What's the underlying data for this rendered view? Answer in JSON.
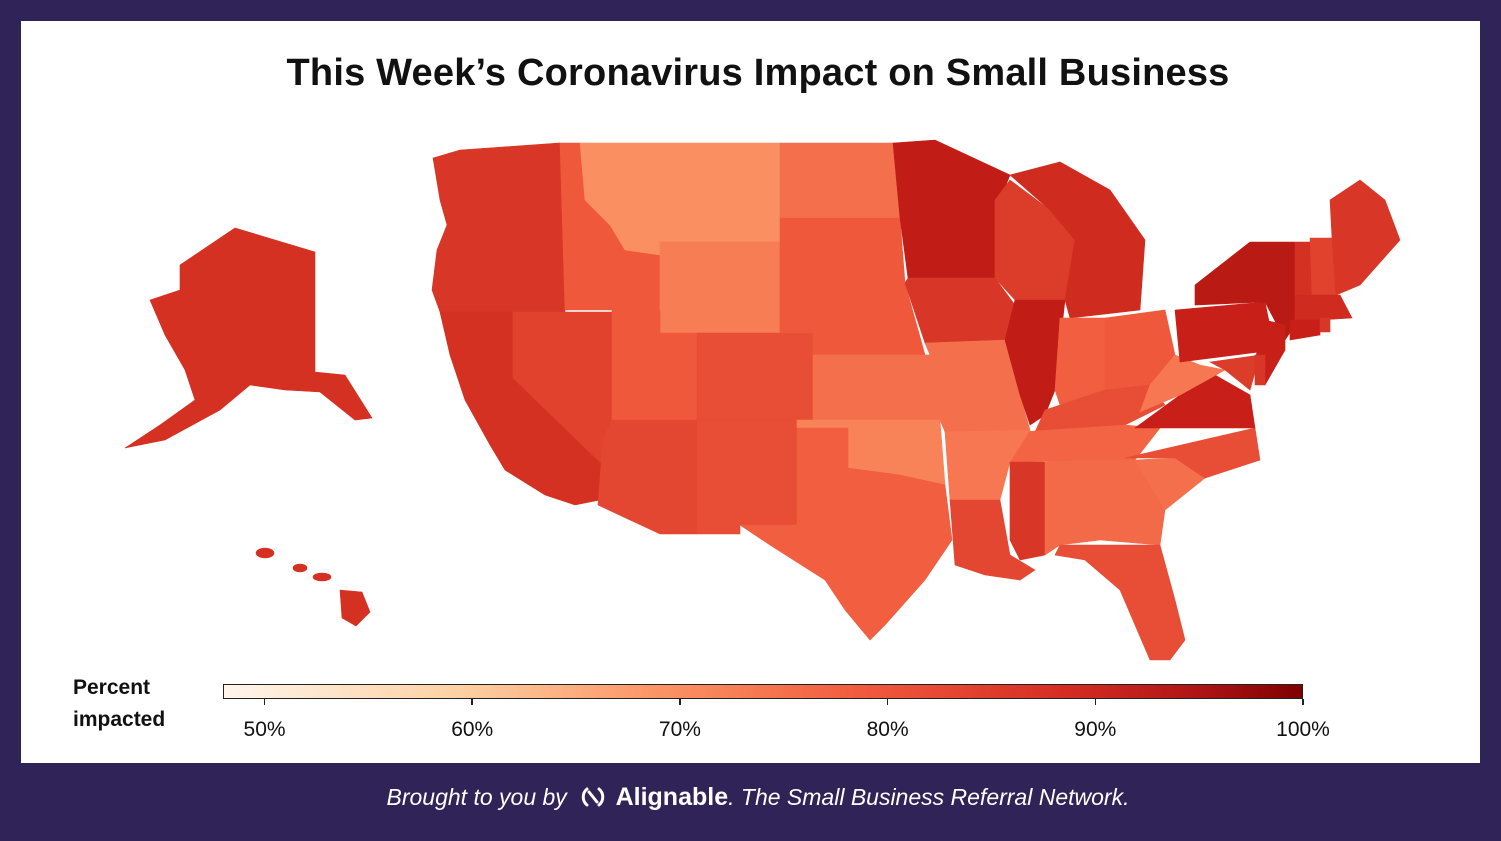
{
  "title": "This Week’s Coronavirus Impact on Small Business",
  "legend": {
    "title": "Percent impacted",
    "min": 48,
    "max": 100,
    "ticks": [
      "50%",
      "60%",
      "70%",
      "80%",
      "90%",
      "100%"
    ],
    "tick_values": [
      50,
      60,
      70,
      80,
      90,
      100
    ]
  },
  "footer": {
    "prefix": "Brought to you by",
    "brand": "Alignable",
    "suffix": ". The Small Business Referral Network."
  },
  "colors": {
    "frame": "#2f2358",
    "background": "#ffffff",
    "scale_low": "#fff5eb",
    "scale_high": "#7f0000"
  },
  "states": {
    "WA": 86,
    "OR": 86,
    "CA": 87,
    "NV": 84,
    "ID": 80,
    "MT": 71,
    "WY": 74,
    "UT": 80,
    "AZ": 83,
    "CO": 82,
    "NM": 82,
    "ND": 76,
    "SD": 80,
    "NE": 80,
    "KS": 76,
    "OK": 73,
    "TX": 79,
    "MN": 91,
    "IA": 86,
    "MO": 76,
    "AR": 75,
    "LA": 83,
    "WI": 85,
    "IL": 91,
    "MI": 88,
    "IN": 79,
    "OH": 80,
    "KY": 82,
    "TN": 78,
    "MS": 86,
    "AL": 77,
    "GA": 77,
    "FL": 82,
    "SC": 76,
    "NC": 82,
    "VA": 90,
    "WV": 75,
    "PA": 90,
    "NY": 92,
    "VT": 87,
    "NH": 84,
    "ME": 86,
    "MA": 88,
    "CT": 90,
    "RI": 86,
    "NJ": 90,
    "DE": 86,
    "MD": 85,
    "AK": 87,
    "HI": 87
  }
}
